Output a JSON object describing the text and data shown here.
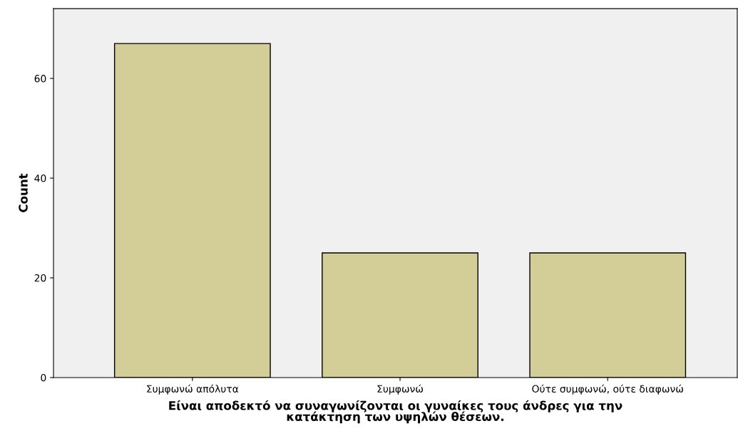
{
  "chart_data": {
    "type": "bar",
    "categories": [
      "Συμφωνώ απόλυτα",
      "Συμφωνώ",
      "Ούτε συμφωνώ, ούτε διαφωνώ"
    ],
    "values": [
      67,
      25,
      25
    ],
    "color": "#d3ce97",
    "xlabel": "Είναι αποδεκτό να συναγωνίζονται οι γυναίκες τους άνδρες για την\nκατάκτηση των υψηλών θέσεων.",
    "ylabel": "Count",
    "ylim": [
      0,
      74
    ],
    "yticks": [
      0,
      20,
      40,
      60
    ],
    "grid": false,
    "legend": false
  }
}
